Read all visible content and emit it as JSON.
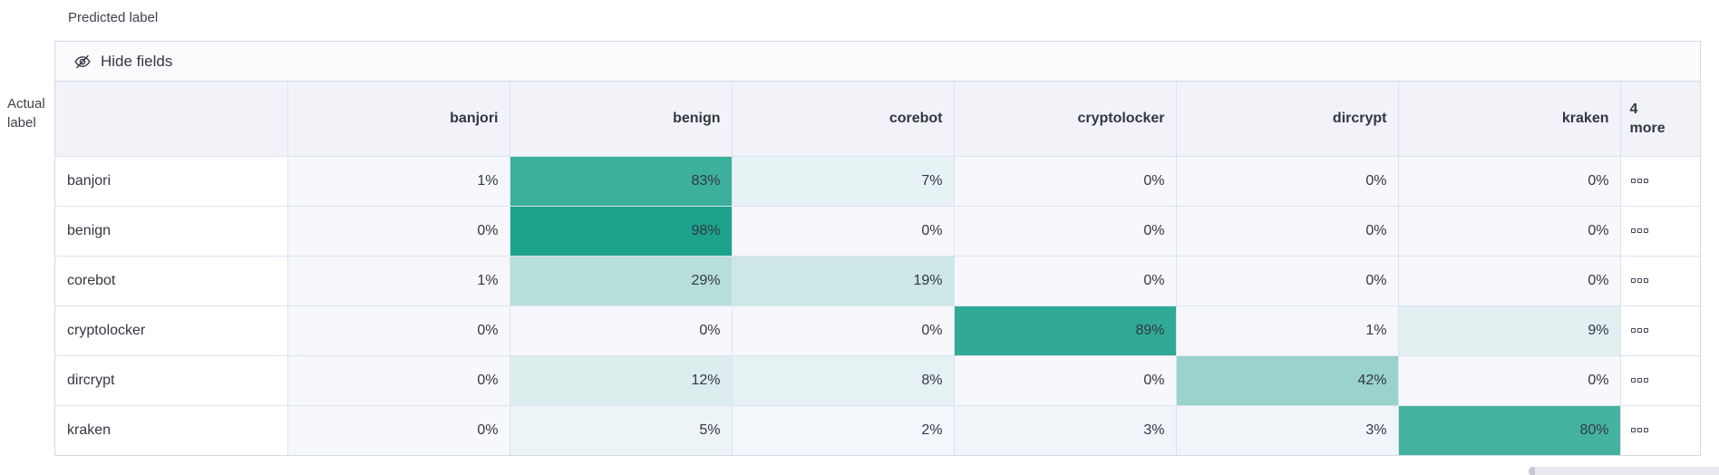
{
  "axis": {
    "predicted_label": "Predicted label",
    "actual_label_line1": "Actual",
    "actual_label_line2": "label"
  },
  "toolbar": {
    "hide_fields_label": "Hide fields",
    "icon": "eye-closed-icon"
  },
  "table": {
    "columns": [
      "banjori",
      "benign",
      "corebot",
      "cryptolocker",
      "dircrypt",
      "kraken"
    ],
    "more_column": {
      "line1": "4",
      "line2": "more",
      "cell_icon": "boxes-horizontal-icon"
    },
    "value_suffix": "%",
    "rows": [
      {
        "label": "banjori",
        "values": [
          1,
          83,
          7,
          0,
          0,
          0
        ]
      },
      {
        "label": "benign",
        "values": [
          0,
          98,
          0,
          0,
          0,
          0
        ]
      },
      {
        "label": "corebot",
        "values": [
          1,
          29,
          19,
          0,
          0,
          0
        ]
      },
      {
        "label": "cryptolocker",
        "values": [
          0,
          0,
          0,
          89,
          1,
          9
        ]
      },
      {
        "label": "dircrypt",
        "values": [
          0,
          12,
          8,
          0,
          42,
          0
        ]
      },
      {
        "label": "kraken",
        "values": [
          0,
          5,
          2,
          3,
          3,
          80
        ]
      }
    ]
  },
  "colors": {
    "heat_base": "#17A08A",
    "cell_empty_bg": "#F7F8FC",
    "header_bg": "#F1F3F8",
    "toolbar_bg": "#FAFBFD",
    "border": "#D3DAE6",
    "text": "#343741"
  }
}
